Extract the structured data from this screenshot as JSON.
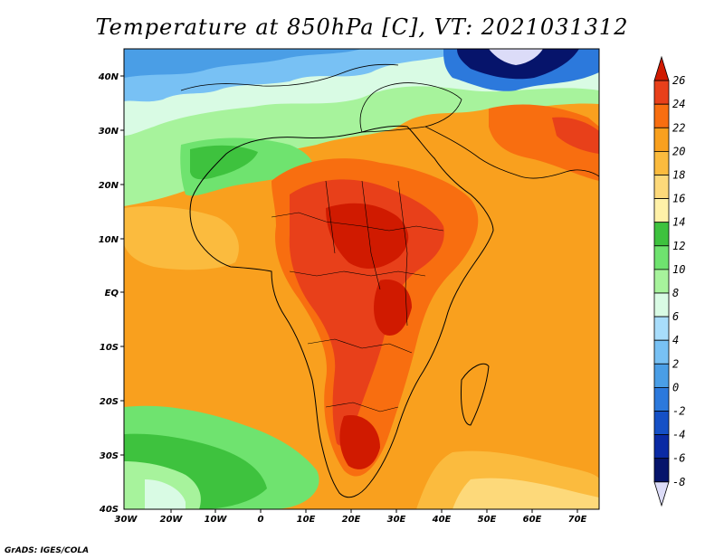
{
  "title": "Temperature at 850hPa [C], VT: 2021031312",
  "credit": "GrADS: IGES/COLA",
  "map": {
    "lat_labels": [
      "40N",
      "30N",
      "20N",
      "10N",
      "EQ",
      "10S",
      "20S",
      "30S",
      "40S"
    ],
    "lon_labels": [
      "30W",
      "20W",
      "10W",
      "0",
      "10E",
      "20E",
      "30E",
      "40E",
      "50E",
      "60E",
      "70E"
    ]
  },
  "colorbar": {
    "labels": [
      "26",
      "24",
      "22",
      "20",
      "18",
      "16",
      "14",
      "12",
      "10",
      "8",
      "6",
      "4",
      "2",
      "0",
      "-2",
      "-4",
      "-6",
      "-8"
    ],
    "colors": [
      "#d01a00",
      "#e8401a",
      "#f86e10",
      "#f9a01e",
      "#fbbb3e",
      "#fdd97a",
      "#fff1a8",
      "#3ec23e",
      "#6fe36f",
      "#a7f39c",
      "#d9fbe4",
      "#a8ddfb",
      "#78c1f4",
      "#4a9ee6",
      "#2c79dc",
      "#1550c6",
      "#0a2aa4",
      "#06146b",
      "#dcdcf8"
    ]
  }
}
